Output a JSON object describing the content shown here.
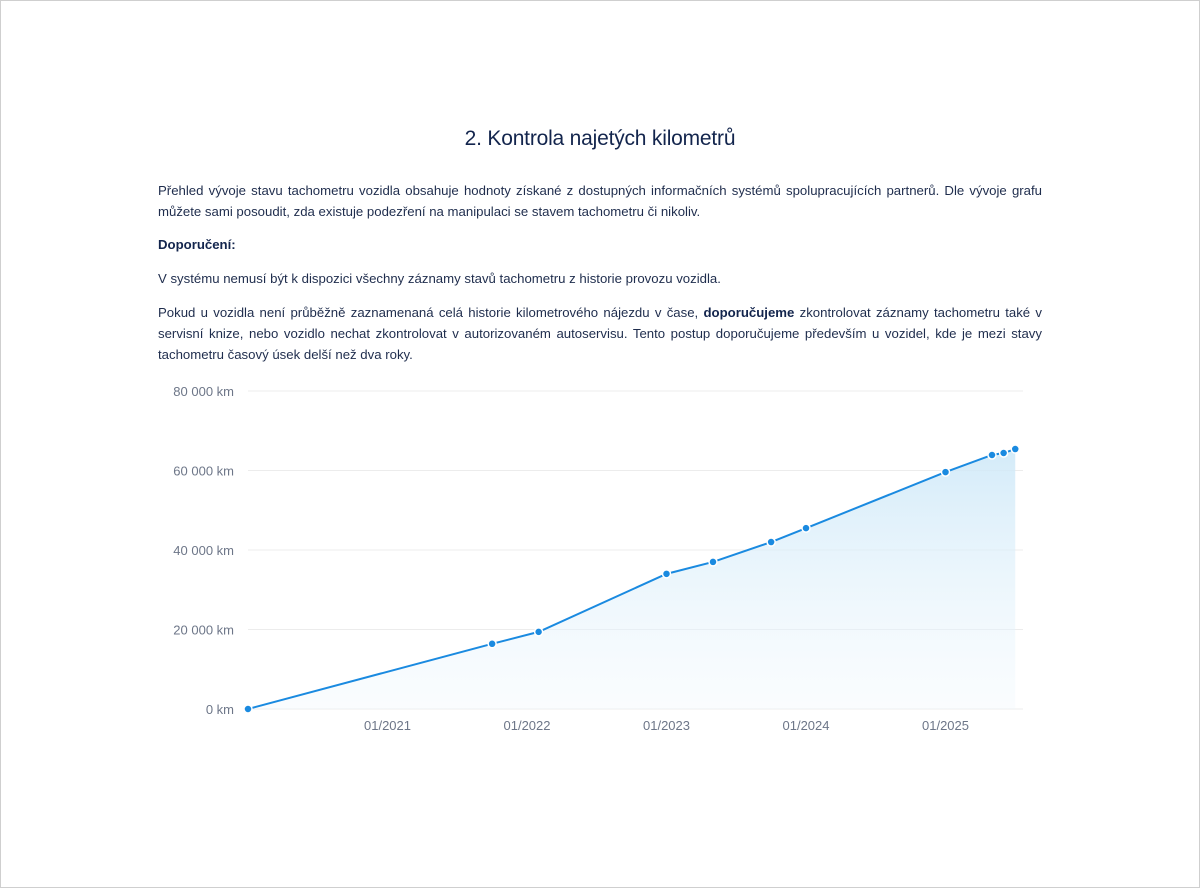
{
  "title": "2. Kontrola najetých kilometrů",
  "intro": "Přehled vývoje stavu tachometru vozidla obsahuje hodnoty získané z dostupných informačních systémů spolupracujících partnerů. Dle vývoje grafu můžete sami posoudit, zda existuje podezření na manipulaci se stavem tachometru či nikoliv.",
  "recommendation_heading": "Doporučení:",
  "note": "V systému nemusí být k dispozici všechny záznamy stavů tachometru z historie provozu vozidla.",
  "advice": {
    "before": "Pokud u vozidla není průběžně zaznamenaná celá historie kilometrového nájezdu v čase, ",
    "bold": "doporučujeme",
    "after": " zkontrolovat záznamy tachometru také v servisní knize, nebo vozidlo nechat zkontrolovat v autorizovaném autoservisu. Tento postup doporučujeme především u vozidel, kde je mezi stavy tachometru časový úsek delší než dva roky."
  },
  "chart_data": {
    "type": "area",
    "ylim": [
      0,
      80000
    ],
    "y_ticks": [
      "0 km",
      "20 000 km",
      "40 000 km",
      "60 000 km",
      "80 000 km"
    ],
    "y_tick_values": [
      0,
      20000,
      40000,
      60000,
      80000
    ],
    "x_ticks": [
      "01/2021",
      "01/2022",
      "01/2023",
      "01/2024",
      "01/2025"
    ],
    "grid": true,
    "line_color": "#1a8ae0",
    "points": [
      {
        "date": "2020-01",
        "km": 0
      },
      {
        "date": "2021-10",
        "km": 16400
      },
      {
        "date": "2022-02",
        "km": 19400
      },
      {
        "date": "2023-01",
        "km": 34000
      },
      {
        "date": "2023-05",
        "km": 37000
      },
      {
        "date": "2023-10",
        "km": 42000
      },
      {
        "date": "2024-01",
        "km": 45500
      },
      {
        "date": "2025-01",
        "km": 59600
      },
      {
        "date": "2025-05",
        "km": 63900
      },
      {
        "date": "2025-06",
        "km": 64400
      },
      {
        "date": "2025-07",
        "km": 65400
      }
    ]
  }
}
